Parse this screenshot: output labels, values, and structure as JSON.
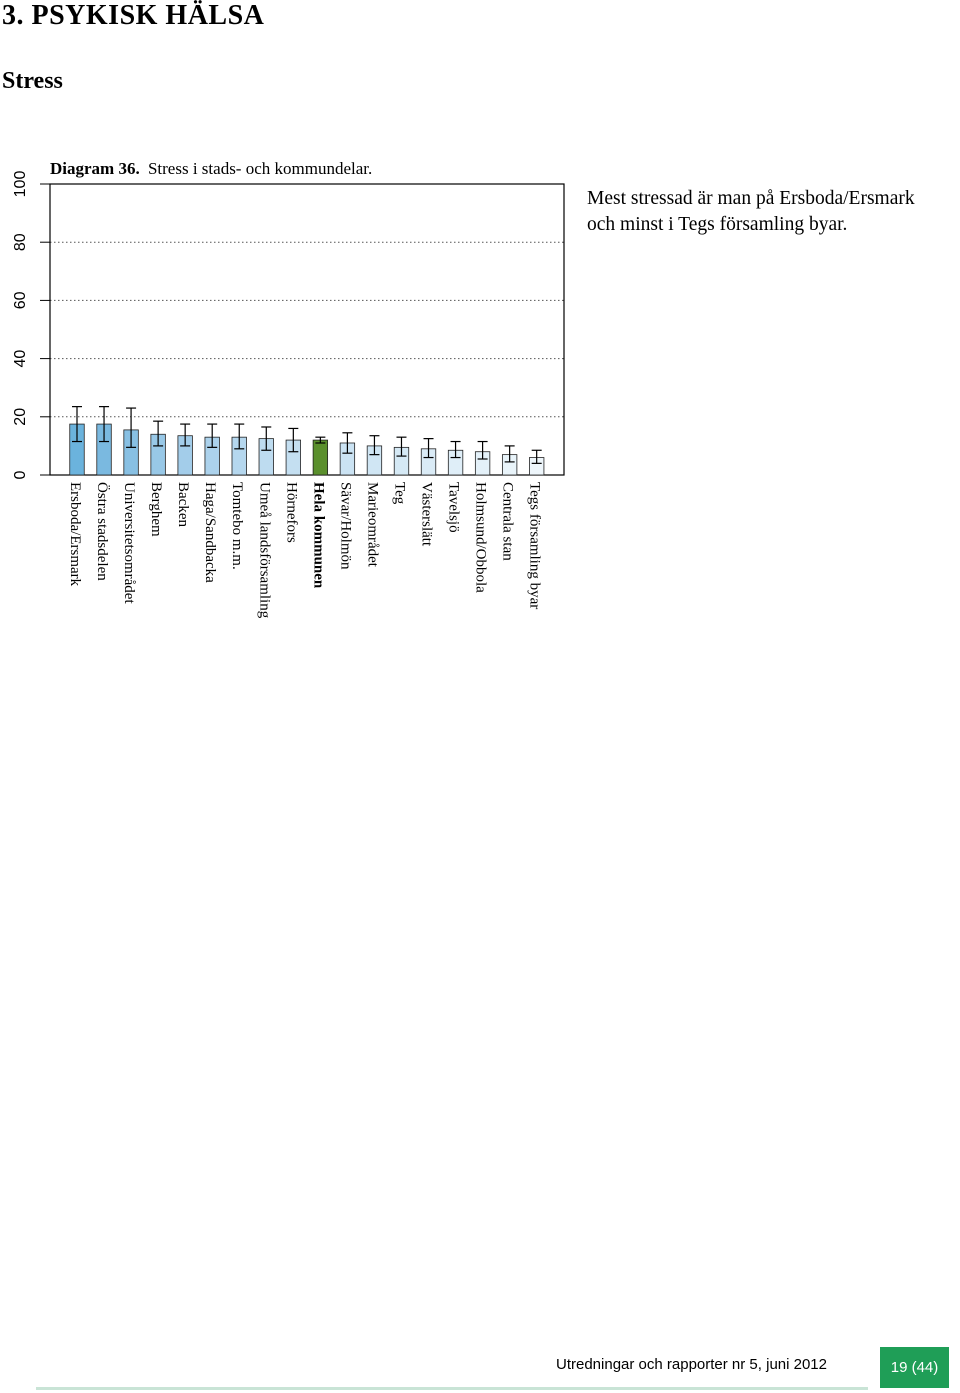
{
  "page": {
    "section_title": "3. PSYKISK HÄLSA",
    "subsection_title": "Stress",
    "commentary_lines": [
      "Mest stressad är man på Ersboda/Ersmark",
      "och minst i Tegs församling byar."
    ],
    "footer": {
      "text": "Utredningar och rapporter nr 5, juni 2012",
      "page_label": "19 (44)",
      "badge_color": "#1f9e57",
      "rule_color": "#c9e4d6"
    }
  },
  "chart_data": {
    "type": "bar",
    "caption_prefix": "Diagram 36.",
    "caption_text": "Stress i stads- och kommundelar.",
    "ylim": [
      0,
      100
    ],
    "yticks": [
      0,
      20,
      40,
      60,
      80,
      100
    ],
    "grid": "dotted horizontal",
    "categories": [
      "Ersboda/Ersmark",
      "Östra stadsdelen",
      "Universitetsområdet",
      "Berghem",
      "Backen",
      "Haga/Sandbacka",
      "Tomtebo m.m.",
      "Umeå landsförsamling",
      "Hörnefors",
      "Hela kommunen",
      "Sävar/Holmön",
      "Marieområdet",
      "Teg",
      "Västerslätt",
      "Tavelsjö",
      "Holmsund/Obbola",
      "Centrala stan",
      "Tegs församling byar"
    ],
    "values": [
      17.5,
      17.5,
      15.5,
      14.0,
      13.5,
      13.0,
      13.0,
      12.5,
      12.0,
      12.0,
      11.0,
      10.0,
      9.5,
      9.0,
      8.5,
      8.0,
      7.0,
      6.0
    ],
    "error_low": [
      11.5,
      11.5,
      9.5,
      10.0,
      10.0,
      9.5,
      9.0,
      8.5,
      8.0,
      11.0,
      7.5,
      7.0,
      6.5,
      6.0,
      6.0,
      5.5,
      4.5,
      4.0
    ],
    "error_high": [
      23.5,
      23.5,
      23.0,
      18.5,
      17.5,
      17.5,
      17.5,
      16.5,
      16.0,
      13.0,
      14.5,
      13.5,
      13.0,
      12.5,
      11.5,
      11.5,
      10.0,
      8.5
    ],
    "bar_colors": [
      "#6bb3dd",
      "#7ab9e0",
      "#88c0e3",
      "#98c8e7",
      "#a3cdea",
      "#acd2ec",
      "#b5d7ee",
      "#bedcf0",
      "#c4dff1",
      "#5a8f2c",
      "#cbe3f3",
      "#d0e6f4",
      "#d5e9f5",
      "#daebf6",
      "#dfeef8",
      "#e4f1f9",
      "#e9f4fa",
      "#eef6fb"
    ],
    "highlight_category": "Hela kommunen",
    "legend": "none"
  }
}
